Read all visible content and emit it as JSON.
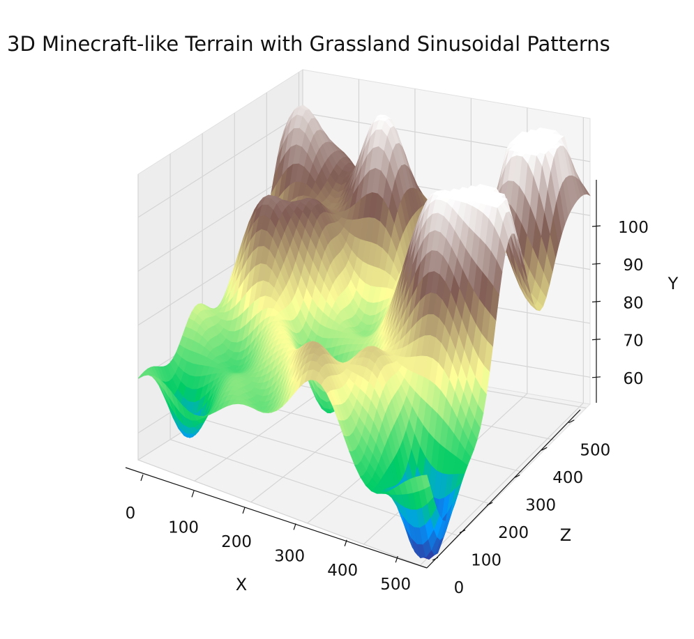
{
  "chart_data": {
    "type": "surface3d",
    "title": "3D Minecraft-like Terrain with Grassland Sinusoidal Patterns",
    "xlabel": "X",
    "ylabel": "Y",
    "zlabel": "Z",
    "xlim": [
      0,
      512
    ],
    "zlim": [
      0,
      512
    ],
    "ylim": [
      55,
      108
    ],
    "x_ticks": [
      0,
      100,
      200,
      300,
      400,
      500
    ],
    "z_ticks": [
      0,
      100,
      200,
      300,
      400,
      500
    ],
    "y_ticks": [
      60,
      70,
      80,
      90,
      100
    ],
    "colormap": "terrain",
    "grid": true,
    "surface_y_range": [
      52,
      106
    ],
    "peaks": [
      {
        "x": 460,
        "z": 470,
        "y": 106
      },
      {
        "x": 40,
        "z": 460,
        "y": 104
      },
      {
        "x": 200,
        "z": 440,
        "y": 101
      },
      {
        "x": 100,
        "z": 300,
        "y": 94
      },
      {
        "x": 390,
        "z": 260,
        "y": 100
      },
      {
        "x": 470,
        "z": 280,
        "y": 103
      },
      {
        "x": 440,
        "z": 400,
        "y": 98
      },
      {
        "x": 300,
        "z": 100,
        "y": 86
      }
    ],
    "valleys": [
      {
        "x": 470,
        "z": 70,
        "y": 52
      },
      {
        "x": 470,
        "z": 360,
        "y": 58
      },
      {
        "x": 60,
        "z": 40,
        "y": 60
      },
      {
        "x": 250,
        "z": 170,
        "y": 64
      },
      {
        "x": 360,
        "z": 380,
        "y": 63
      }
    ]
  }
}
